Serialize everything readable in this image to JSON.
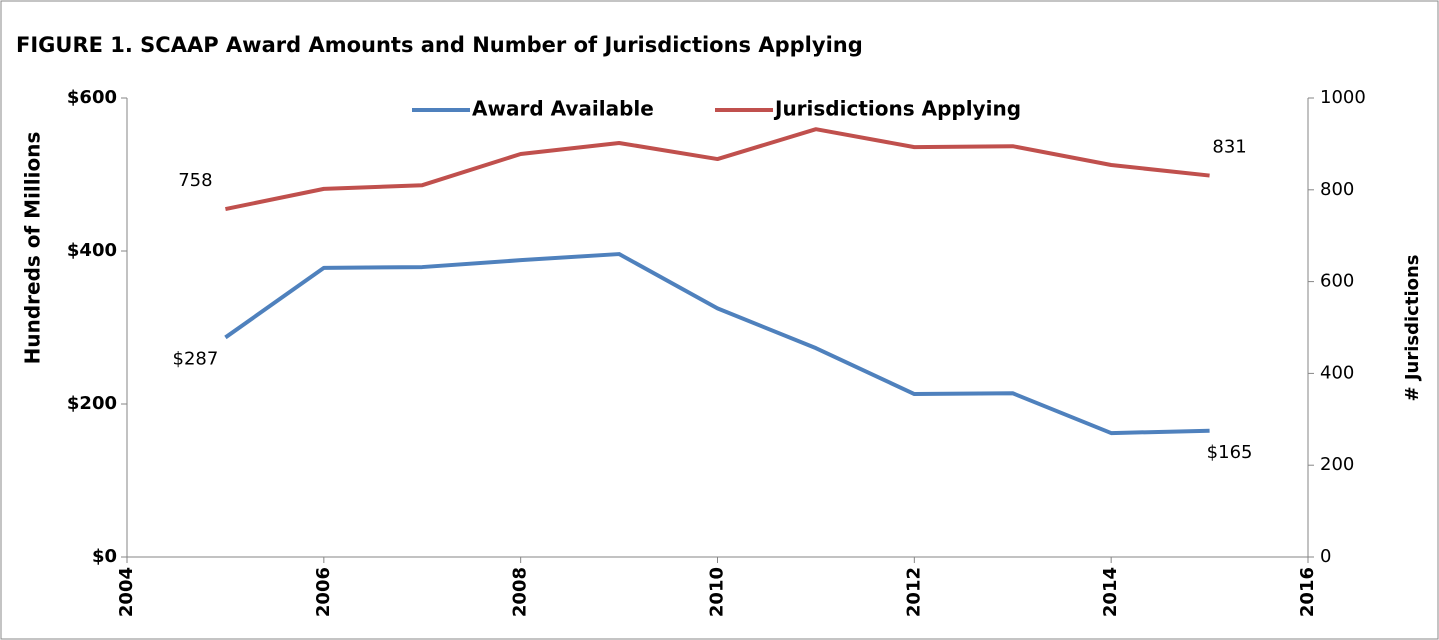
{
  "chart_data": {
    "type": "line",
    "title": "FIGURE 1. SCAAP Award Amounts and Number of Jurisdictions Applying",
    "y_label": "Hundreds of Millions",
    "y2_label": "# Jurisdictions",
    "x": [
      2005,
      2006,
      2007,
      2008,
      2009,
      2010,
      2011,
      2012,
      2013,
      2014,
      2015
    ],
    "xlim": [
      2004,
      2016
    ],
    "xticks": [
      2004,
      2006,
      2008,
      2010,
      2012,
      2014,
      2016
    ],
    "ylim": [
      0,
      600
    ],
    "yticks": [
      {
        "value": 0,
        "label": "$0"
      },
      {
        "value": 200,
        "label": "$200"
      },
      {
        "value": 400,
        "label": "$400"
      },
      {
        "value": 600,
        "label": "$600"
      }
    ],
    "y2lim": [
      0,
      1000
    ],
    "y2ticks": [
      0,
      200,
      400,
      600,
      800,
      1000
    ],
    "grid": false,
    "legend": "top",
    "series": [
      {
        "name": "Award Available",
        "color": "#4f81bd",
        "values": [
          287,
          378,
          379,
          388,
          396,
          325,
          273,
          213,
          214,
          162,
          165
        ],
        "value_labels": [
          "$287",
          null,
          null,
          null,
          null,
          null,
          null,
          null,
          null,
          null,
          "$165"
        ]
      },
      {
        "name": "Jurisdictions Applying",
        "color": "#c0504d",
        "axis": "y2",
        "values": [
          758,
          802,
          810,
          878,
          902,
          867,
          932,
          893,
          895,
          854,
          831
        ],
        "value_labels": [
          "758",
          null,
          null,
          null,
          null,
          null,
          null,
          null,
          null,
          null,
          "831"
        ]
      }
    ]
  }
}
